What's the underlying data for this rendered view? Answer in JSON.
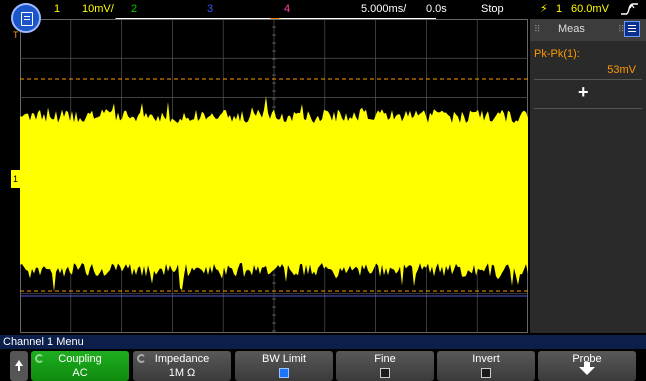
{
  "status": {
    "ch1_num": "1",
    "ch1_scale": "10mV/",
    "ch2_num": "2",
    "ch3_num": "3",
    "ch4_num": "4",
    "timebase": "5.000ms/",
    "delay": "0.0s",
    "run_state": "Stop",
    "trig_source": "1",
    "trig_level": "60.0mV",
    "trig_icon": "lightning-icon",
    "slope_icon": "rising-edge-icon"
  },
  "display": {
    "trace_color": "#ffff00",
    "ref_line_color": "#ff9900",
    "grid_color": "#555555",
    "ch1_marker": "1",
    "trigger_marker": "T"
  },
  "measurements": {
    "tab_label": "Meas",
    "items": [
      {
        "label": "Pk-Pk(1):",
        "value": "53mV"
      }
    ],
    "add_label": "+"
  },
  "menu": {
    "title": "Channel 1 Menu",
    "softkeys": [
      {
        "label": "Coupling",
        "value": "AC"
      },
      {
        "label": "Impedance",
        "value": "1M Ω"
      },
      {
        "label": "BW Limit",
        "checked": true
      },
      {
        "label": "Fine",
        "checked": false
      },
      {
        "label": "Invert",
        "checked": false
      },
      {
        "label": "Probe"
      }
    ]
  },
  "colors": {
    "ch1": "#ffff00",
    "ch2": "#00cc00",
    "ch3": "#3355ff",
    "ch4": "#ff44aa",
    "accent": "#ff9900"
  }
}
